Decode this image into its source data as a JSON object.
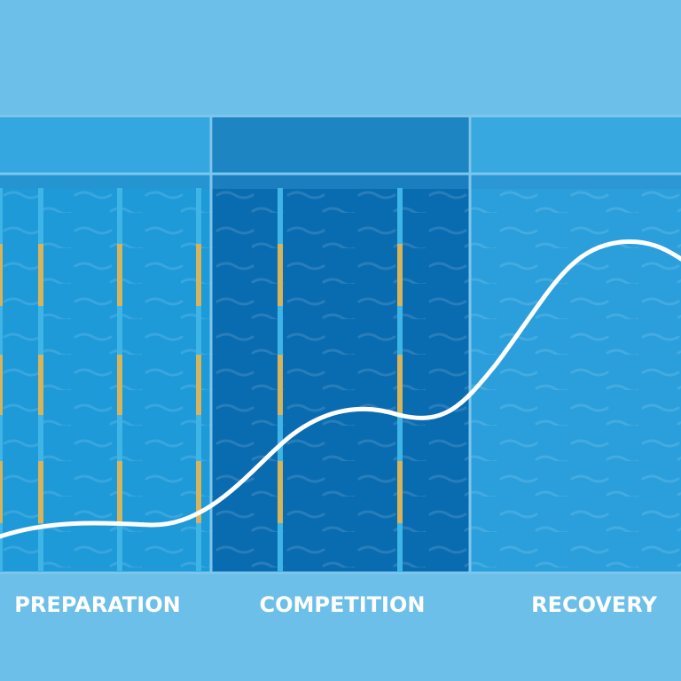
{
  "sections": [
    {
      "label": "PREPARATION"
    },
    {
      "label": "COMPETITION"
    },
    {
      "label": "RECOVERY"
    }
  ]
}
